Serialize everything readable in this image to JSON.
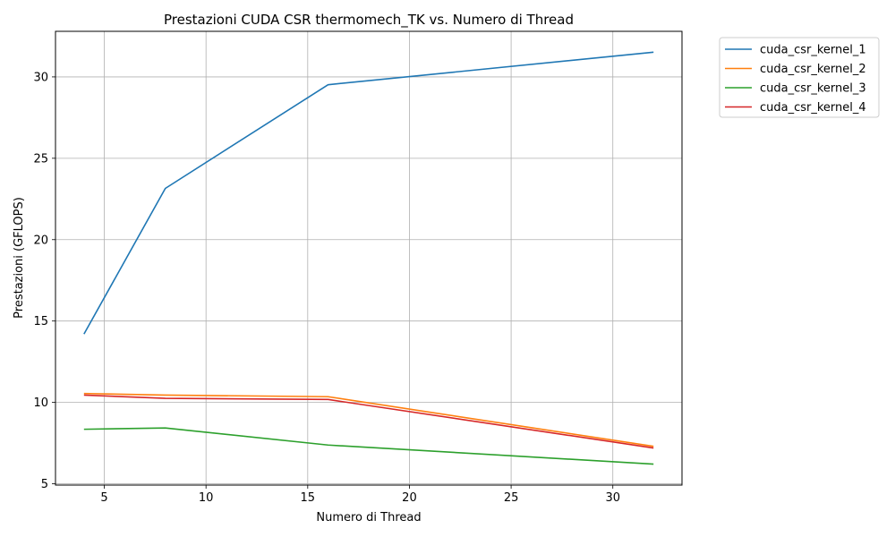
{
  "chart_data": {
    "type": "line",
    "title": "Prestazioni CUDA CSR thermomech_TK vs. Numero di Thread",
    "xlabel": "Numero di Thread",
    "ylabel": "Prestazioni (GFLOPS)",
    "xlim": [
      2.6,
      33.4
    ],
    "ylim": [
      4.92,
      32.8
    ],
    "xticks": [
      5,
      10,
      15,
      20,
      25,
      30
    ],
    "yticks": [
      5,
      10,
      15,
      20,
      25,
      30
    ],
    "grid": true,
    "legend_position": "outside-top-right",
    "x": [
      4,
      8,
      16,
      32
    ],
    "series": [
      {
        "name": "cuda_csr_kernel_1",
        "color": "#1f77b4",
        "values": [
          14.2,
          23.15,
          29.52,
          31.52
        ]
      },
      {
        "name": "cuda_csr_kernel_2",
        "color": "#ff7f0e",
        "values": [
          10.55,
          10.45,
          10.35,
          7.3
        ]
      },
      {
        "name": "cuda_csr_kernel_3",
        "color": "#2ca02c",
        "values": [
          8.35,
          8.43,
          7.38,
          6.21
        ]
      },
      {
        "name": "cuda_csr_kernel_4",
        "color": "#d62728",
        "values": [
          10.45,
          10.25,
          10.18,
          7.2
        ]
      }
    ]
  }
}
